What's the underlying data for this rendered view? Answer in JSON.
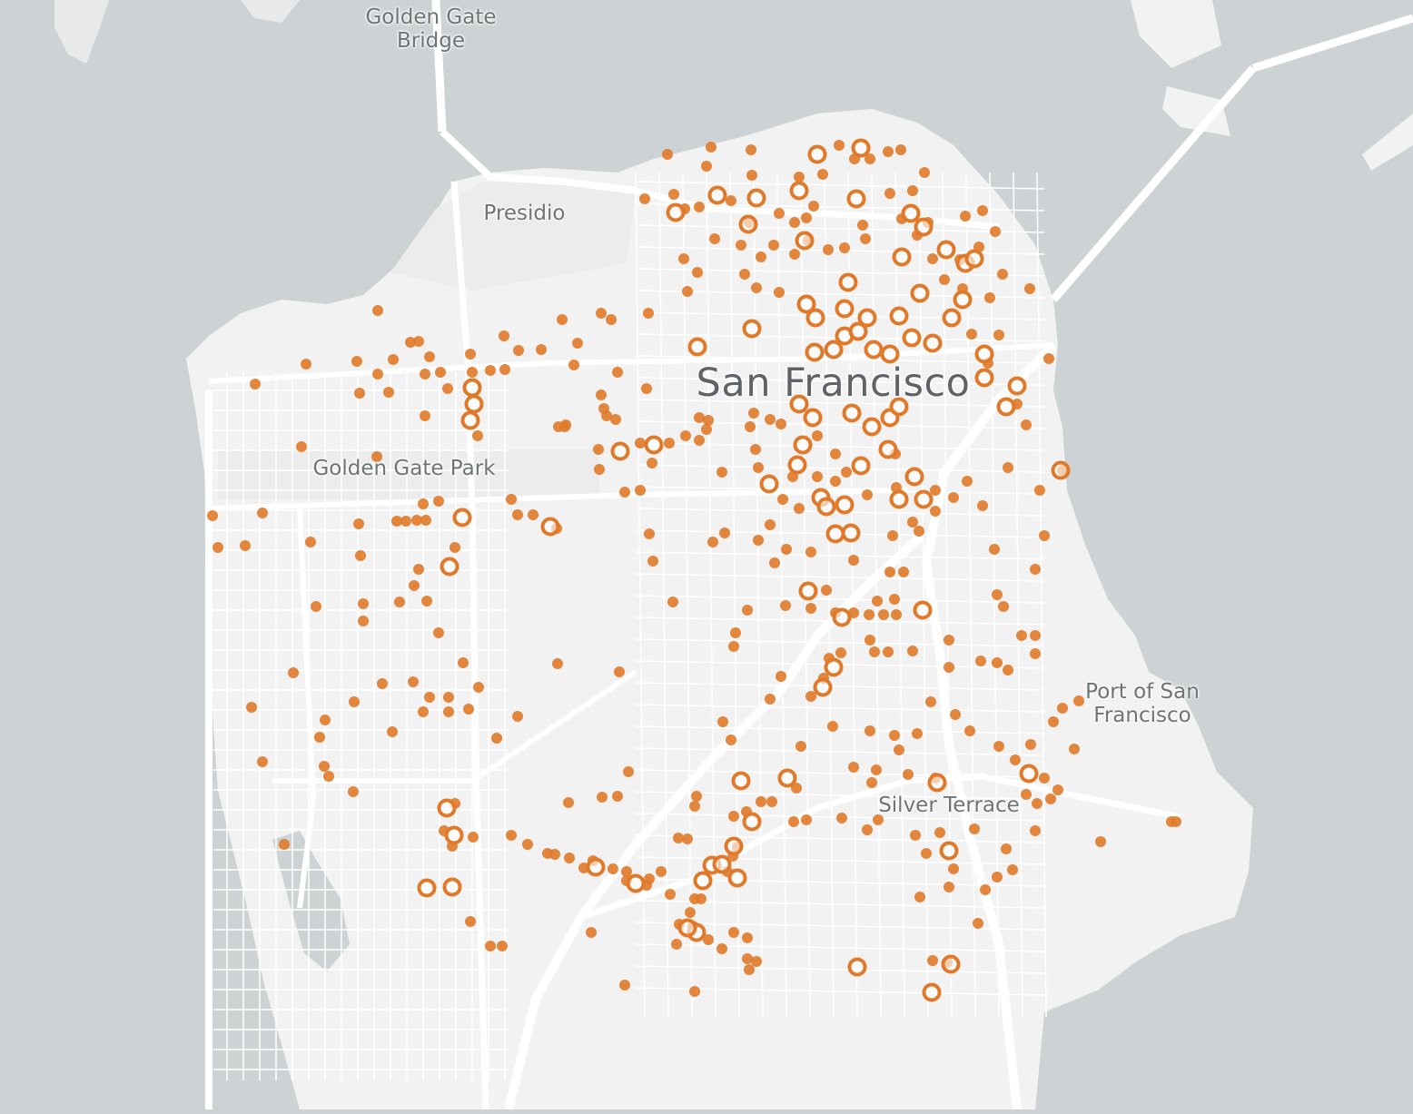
{
  "map": {
    "labels": {
      "golden_gate_bridge": "Golden Gate\nBridge",
      "presidio": "Presidio",
      "san_francisco": "San Francisco",
      "golden_gate_park": "Golden Gate Park",
      "port_of_sf": "Port of San\nFrancisco",
      "silver_terrace": "Silver Terrace"
    },
    "colors": {
      "water": "#cdd3d5",
      "land": "#f2f2f2",
      "road": "#ffffff",
      "marker": "#e07a2a"
    },
    "marker_types": [
      "filled-dot",
      "hollow-ring"
    ]
  }
}
